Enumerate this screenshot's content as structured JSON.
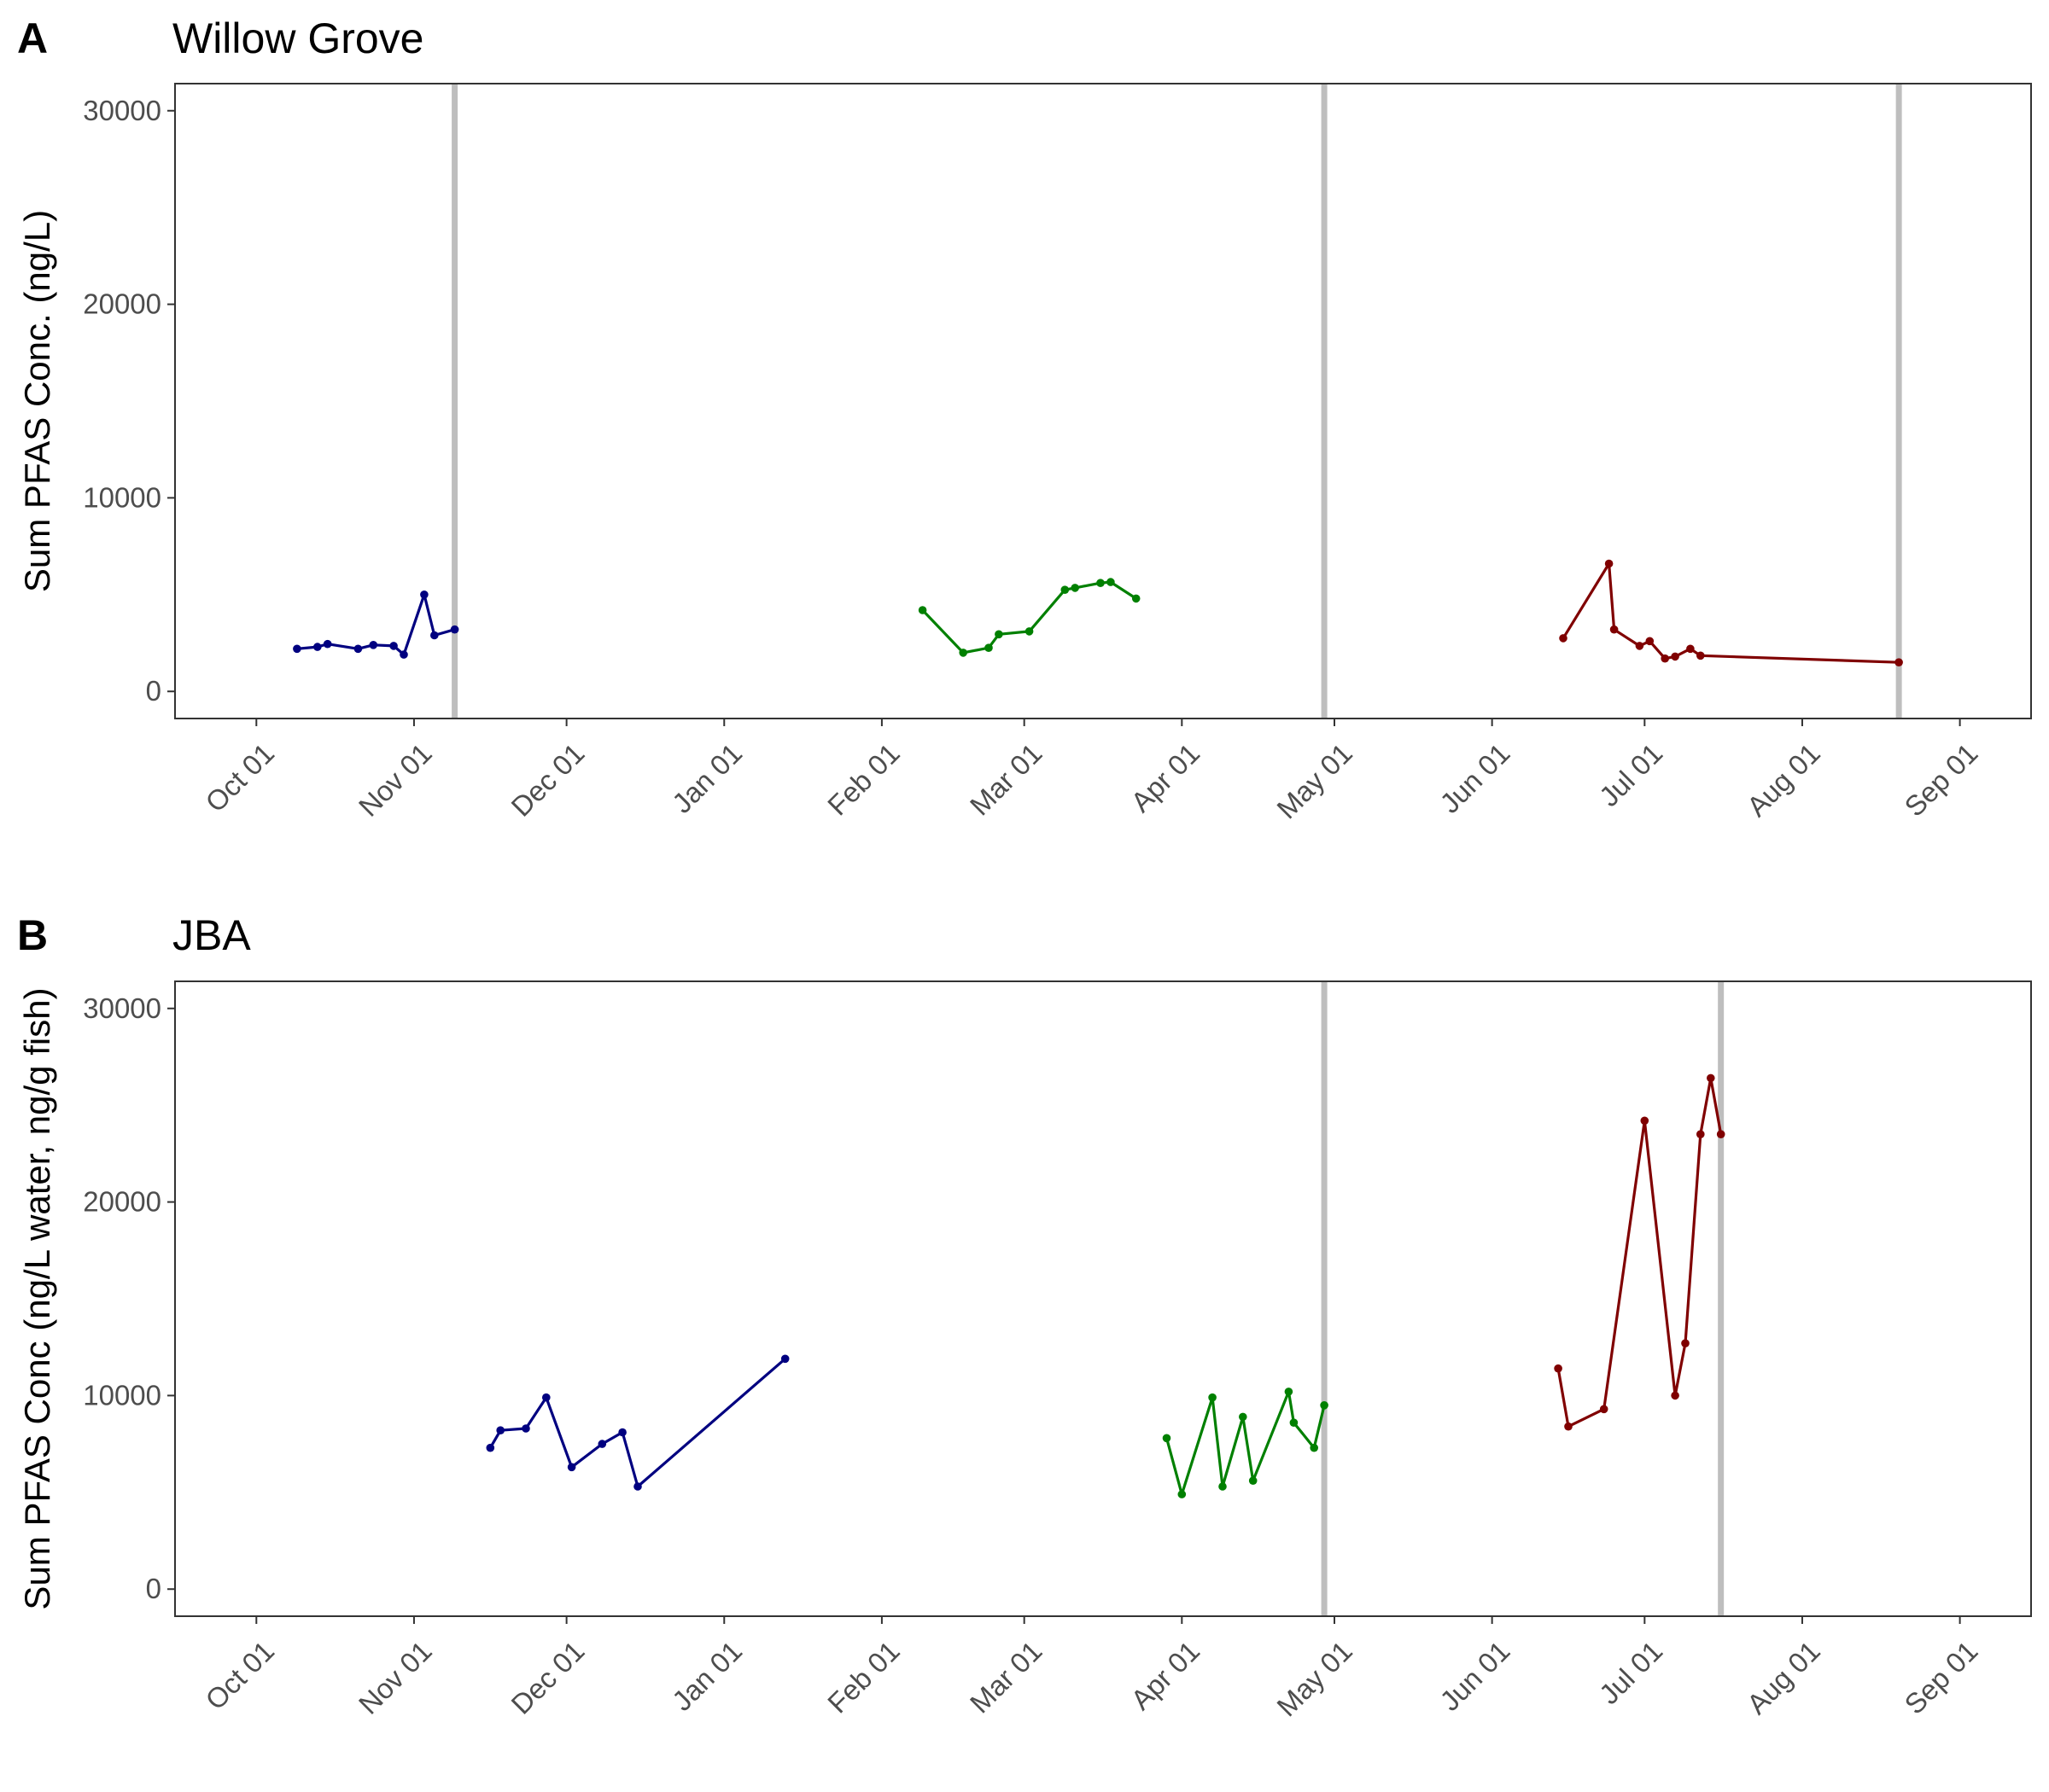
{
  "chart_data": [
    {
      "type": "line",
      "panel_tag": "A",
      "title": "Willow Grove",
      "ylabel": "Sum PFAS Conc. (ng/L)",
      "xlabel": "",
      "ylim": [
        -1400,
        31400
      ],
      "xlim": [
        "2021-09-15",
        "2022-09-15"
      ],
      "y_ticks": [
        0,
        10000,
        20000,
        30000
      ],
      "x_ticks": [
        "2021-10-01",
        "2021-11-01",
        "2021-12-01",
        "2022-01-01",
        "2022-02-01",
        "2022-03-01",
        "2022-04-01",
        "2022-05-01",
        "2022-06-01",
        "2022-07-01",
        "2022-08-01",
        "2022-09-01"
      ],
      "x_tick_labels": [
        "Oct 01",
        "Nov 01",
        "Dec 01",
        "Jan 01",
        "Feb 01",
        "Mar 01",
        "Apr 01",
        "May 01",
        "Jun 01",
        "Jul 01",
        "Aug 01",
        "Sep 01"
      ],
      "grid": false,
      "legend": "none",
      "vlines": [
        "2021-11-09",
        "2022-04-29",
        "2022-08-20"
      ],
      "series": [
        {
          "color": "#000080",
          "x": [
            "2021-10-09",
            "2021-10-13",
            "2021-10-15",
            "2021-10-21",
            "2021-10-24",
            "2021-10-28",
            "2021-10-30",
            "2021-11-03",
            "2021-11-05",
            "2021-11-09"
          ],
          "values": [
            2200,
            2300,
            2450,
            2200,
            2400,
            2350,
            1900,
            5000,
            2900,
            3200
          ]
        },
        {
          "color": "#008000",
          "x": [
            "2022-02-09",
            "2022-02-17",
            "2022-02-22",
            "2022-02-24",
            "2022-03-02",
            "2022-03-09",
            "2022-03-11",
            "2022-03-16",
            "2022-03-18",
            "2022-03-23"
          ],
          "values": [
            4200,
            2000,
            2250,
            2950,
            3100,
            5250,
            5350,
            5600,
            5650,
            4800
          ]
        },
        {
          "color": "#800000",
          "x": [
            "2022-06-15",
            "2022-06-24",
            "2022-06-25",
            "2022-06-30",
            "2022-07-02",
            "2022-07-05",
            "2022-07-07",
            "2022-07-10",
            "2022-07-12",
            "2022-08-20"
          ],
          "values": [
            2750,
            6600,
            3200,
            2350,
            2600,
            1700,
            1800,
            2200,
            1850,
            1500
          ]
        }
      ]
    },
    {
      "type": "line",
      "panel_tag": "B",
      "title": "JBA",
      "ylabel": "Sum PFAS Conc (ng/L water, ng/g fish)",
      "xlabel": "",
      "ylim": [
        -1400,
        31400
      ],
      "xlim": [
        "2021-09-15",
        "2022-09-15"
      ],
      "y_ticks": [
        0,
        10000,
        20000,
        30000
      ],
      "x_ticks": [
        "2021-10-01",
        "2021-11-01",
        "2021-12-01",
        "2022-01-01",
        "2022-02-01",
        "2022-03-01",
        "2022-04-01",
        "2022-05-01",
        "2022-06-01",
        "2022-07-01",
        "2022-08-01",
        "2022-09-01"
      ],
      "x_tick_labels": [
        "Oct 01",
        "Nov 01",
        "Dec 01",
        "Jan 01",
        "Feb 01",
        "Mar 01",
        "Apr 01",
        "May 01",
        "Jun 01",
        "Jul 01",
        "Aug 01",
        "Sep 01"
      ],
      "grid": false,
      "legend": "none",
      "vlines": [
        "2022-04-29",
        "2022-07-16"
      ],
      "series": [
        {
          "color": "#000080",
          "x": [
            "2021-11-16",
            "2021-11-18",
            "2021-11-23",
            "2021-11-27",
            "2021-12-02",
            "2021-12-08",
            "2021-12-12",
            "2021-12-15",
            "2022-01-13"
          ],
          "values": [
            7300,
            8200,
            8300,
            9900,
            6300,
            7500,
            8100,
            5300,
            11900
          ]
        },
        {
          "color": "#008000",
          "x": [
            "2022-03-29",
            "2022-04-01",
            "2022-04-07",
            "2022-04-09",
            "2022-04-13",
            "2022-04-15",
            "2022-04-22",
            "2022-04-23",
            "2022-04-27",
            "2022-04-29"
          ],
          "values": [
            7800,
            4900,
            9900,
            5300,
            8900,
            5600,
            10200,
            8600,
            7300,
            9500
          ]
        },
        {
          "color": "#800000",
          "x": [
            "2022-06-14",
            "2022-06-16",
            "2022-06-23",
            "2022-07-01",
            "2022-07-07",
            "2022-07-09",
            "2022-07-12",
            "2022-07-14",
            "2022-07-16"
          ],
          "values": [
            11400,
            8400,
            9300,
            24200,
            10000,
            12700,
            23500,
            26400,
            23500
          ]
        }
      ]
    }
  ]
}
